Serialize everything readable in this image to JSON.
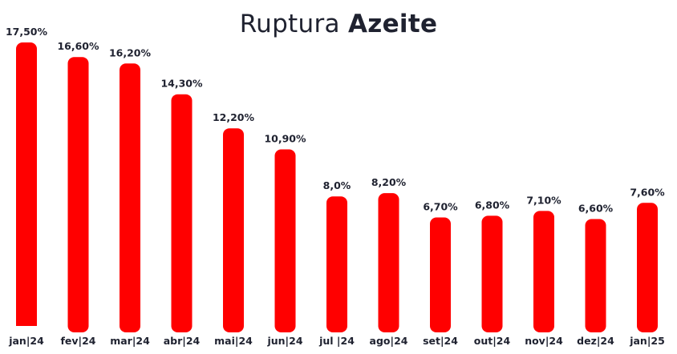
{
  "chart_data": {
    "type": "bar",
    "title_light": "Ruptura",
    "title_bold": "Azeite",
    "xlabel": "",
    "ylabel": "",
    "categories": [
      "jan|24",
      "fev|24",
      "mar|24",
      "abr|24",
      "mai|24",
      "jun|24",
      "jul |24",
      "ago|24",
      "set|24",
      "out|24",
      "nov|24",
      "dez|24",
      "jan|25"
    ],
    "values": [
      17.5,
      16.6,
      16.2,
      14.3,
      12.2,
      10.9,
      8.0,
      8.2,
      6.7,
      6.8,
      7.1,
      6.6,
      7.6
    ],
    "value_labels": [
      "17,50%",
      "16,60%",
      "16,20%",
      "14,30%",
      "12,20%",
      "10,90%",
      "8,0%",
      "8,20%",
      "6,70%",
      "6,80%",
      "7,10%",
      "6,60%",
      "7,60%"
    ],
    "ylim": [
      0,
      18
    ],
    "grid": false,
    "legend": "none",
    "colors": {
      "bar": "#ff0000",
      "text": "#1f2230"
    }
  }
}
